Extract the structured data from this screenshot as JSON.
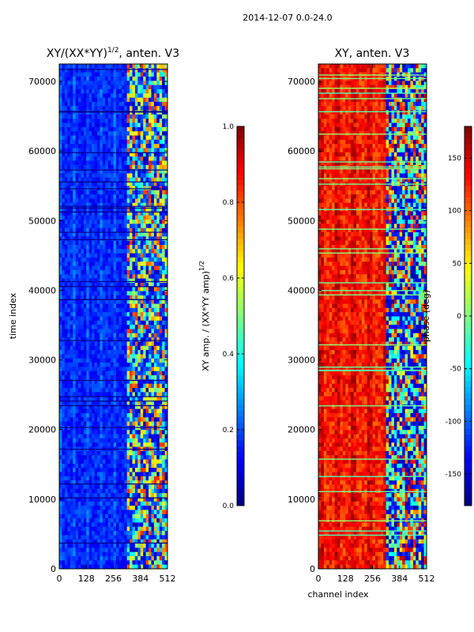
{
  "suptitle": "2014-12-07 0.0-24.0",
  "panels": [
    {
      "title": "XY/(XX*YY)",
      "title_sup": "1/2",
      "title_tail": ", anten. V3",
      "ylabel": "time index",
      "xlabel": ""
    },
    {
      "title": "XY, anten. V3",
      "xlabel": "channel index"
    }
  ],
  "colorbars": [
    {
      "label": "XY amp. / (XX*YY amp)",
      "label_sup": "1/2",
      "ticks": [
        "0.0",
        "0.2",
        "0.4",
        "0.6",
        "0.8",
        "1.0"
      ]
    },
    {
      "label": "phase (deg)",
      "ticks": [
        "-150",
        "-100",
        "-50",
        "0",
        "50",
        "100",
        "150"
      ]
    }
  ],
  "chart_data": [
    {
      "type": "heatmap",
      "title": "XY/(XX*YY)^1/2, anten. V3",
      "xlabel": "",
      "ylabel": "time index",
      "x_ticks": [
        0,
        128,
        256,
        384,
        512
      ],
      "y_ticks": [
        0,
        10000,
        20000,
        30000,
        40000,
        50000,
        60000,
        70000
      ],
      "xlim": [
        0,
        512
      ],
      "ylim": [
        0,
        72500
      ],
      "colormap": "jet",
      "value_range": [
        0.0,
        1.0
      ],
      "colorbar_label": "XY amp. / (XX*YY amp)^1/2",
      "colorbar_ticks": [
        0.0,
        0.2,
        0.4,
        0.6,
        0.8,
        1.0
      ],
      "typical_level": {
        "channels_0_320": 0.15,
        "channels_320_512": 0.45
      }
    },
    {
      "type": "heatmap",
      "title": "XY, anten. V3",
      "xlabel": "channel index",
      "ylabel": "",
      "x_ticks": [
        0,
        128,
        256,
        384,
        512
      ],
      "y_ticks": [
        0,
        10000,
        20000,
        30000,
        40000,
        50000,
        60000,
        70000
      ],
      "xlim": [
        0,
        512
      ],
      "ylim": [
        0,
        72500
      ],
      "colormap": "jet",
      "value_range": [
        -180,
        180
      ],
      "colorbar_label": "phase (deg)",
      "colorbar_ticks": [
        -150,
        -100,
        -50,
        0,
        50,
        100,
        150
      ],
      "typical_level": {
        "channels_0_320": 120,
        "channels_320_512": -100
      }
    }
  ]
}
